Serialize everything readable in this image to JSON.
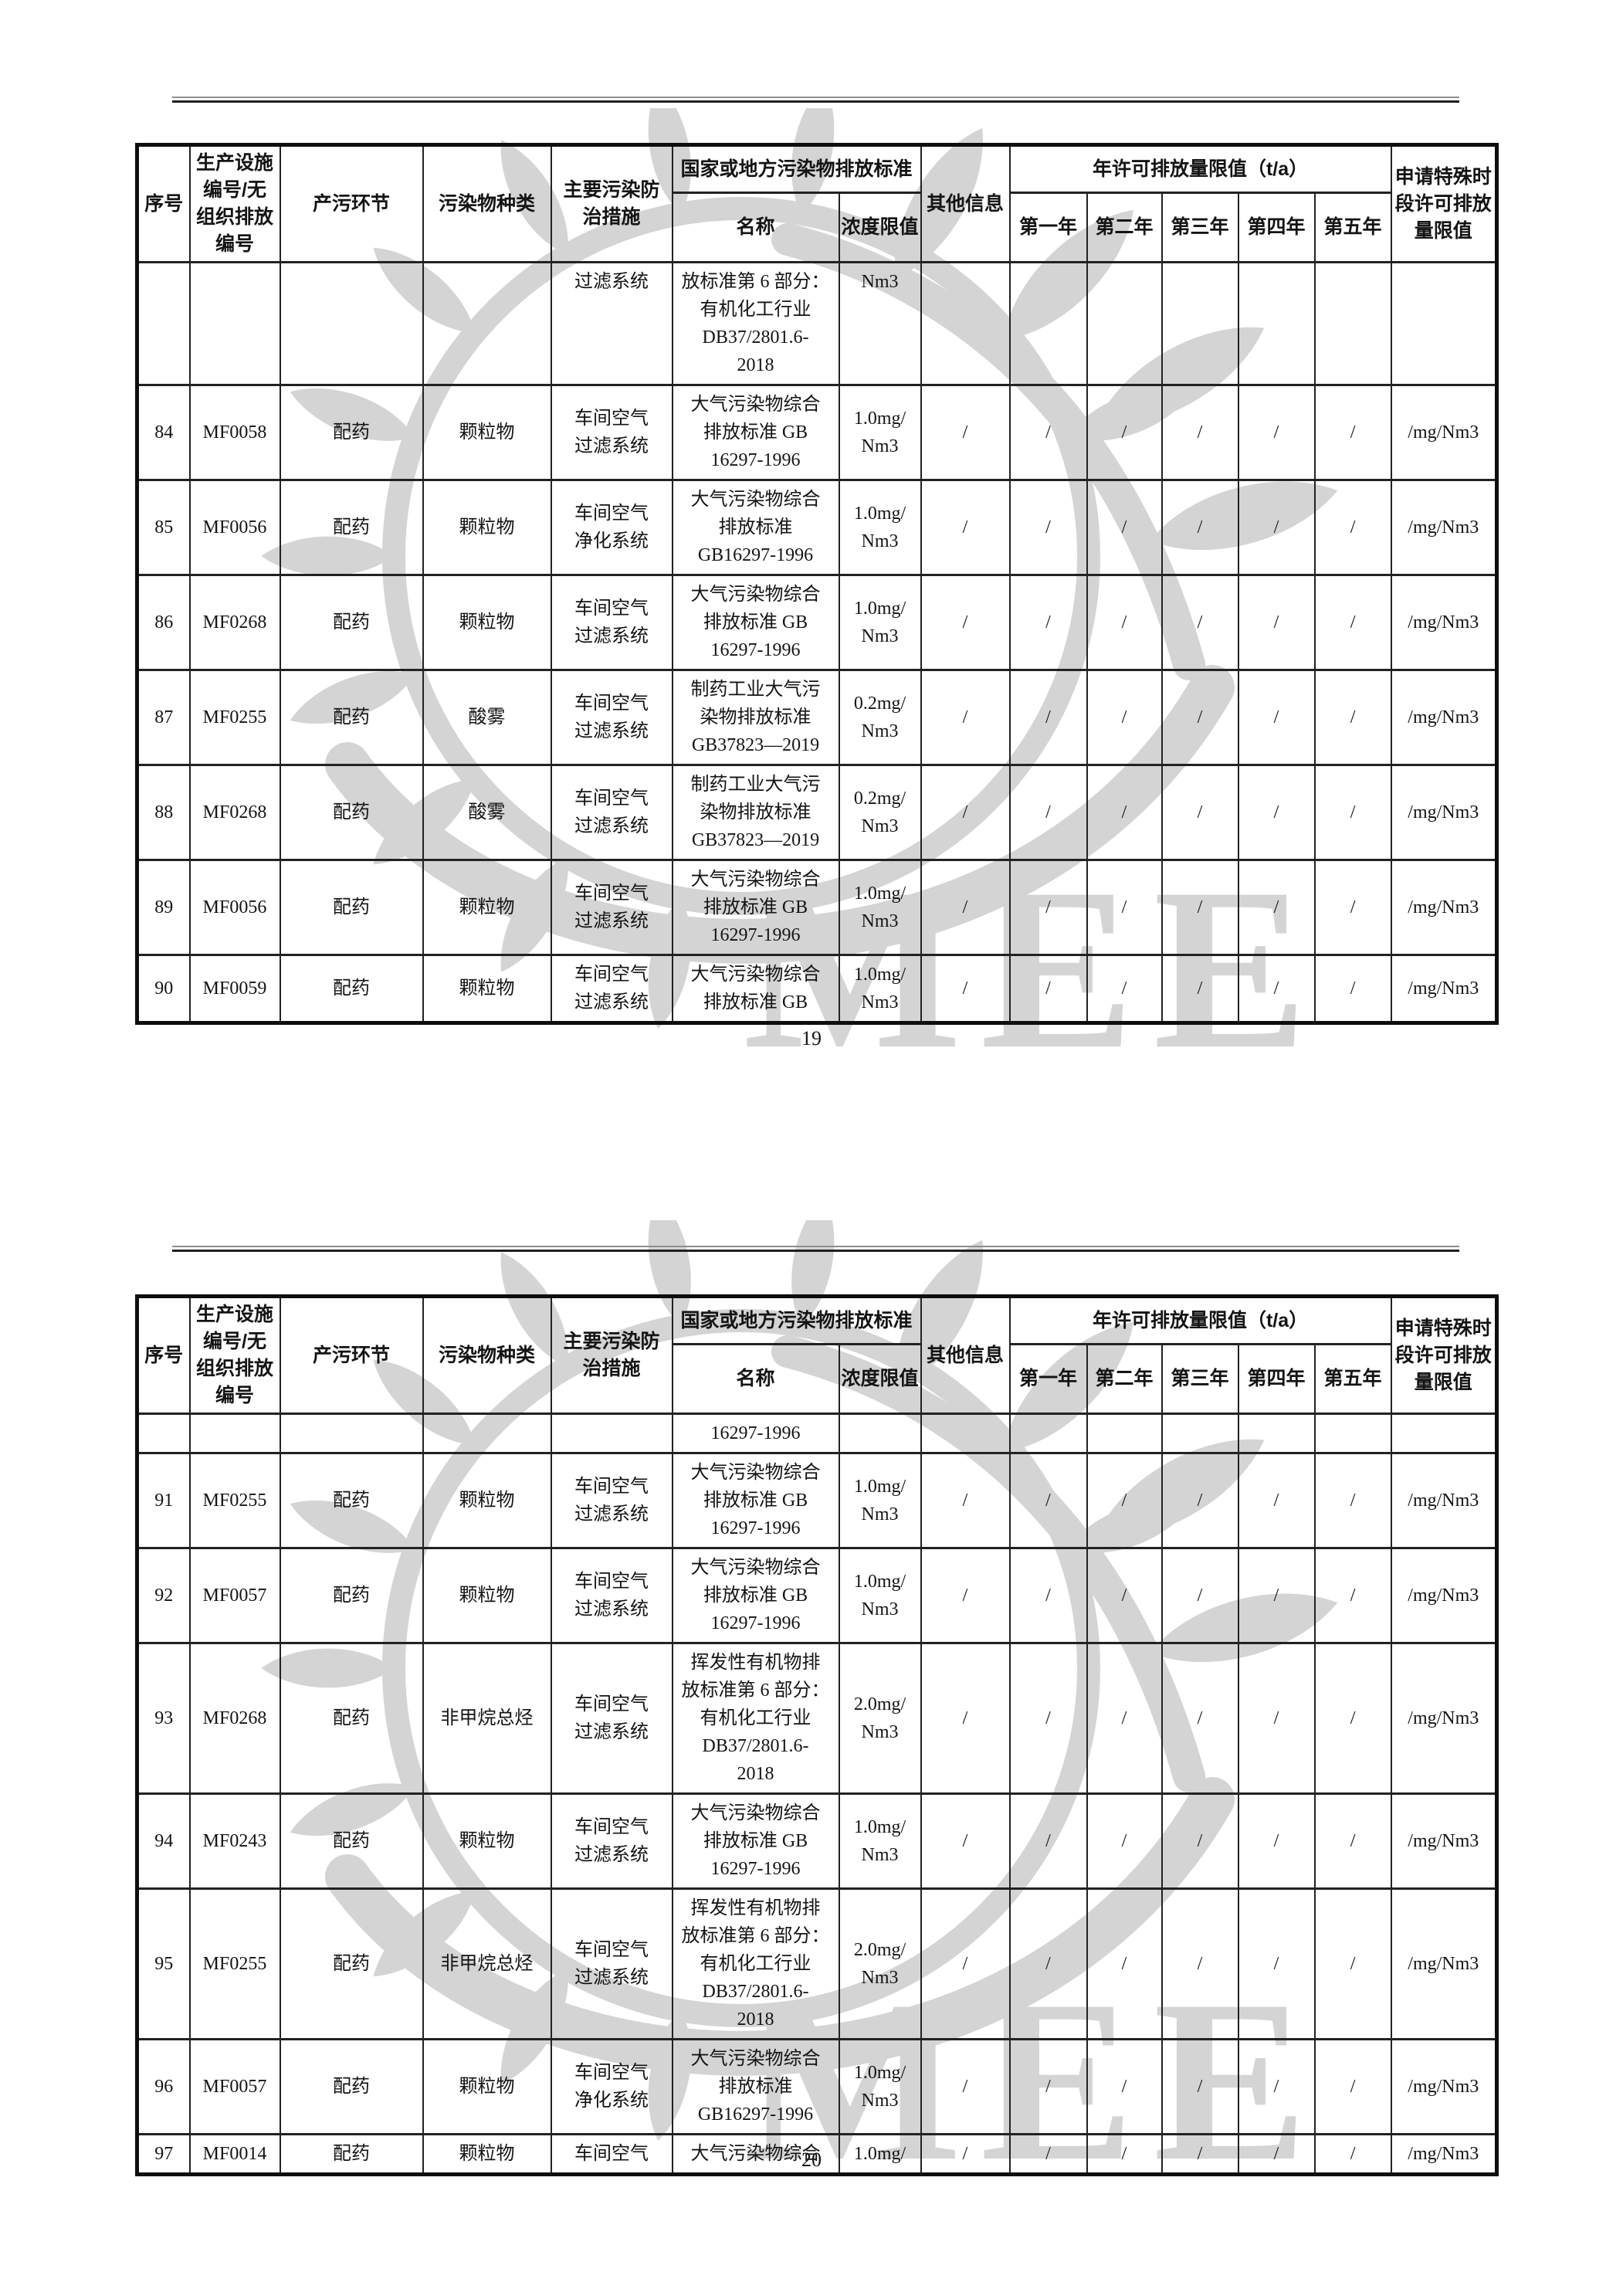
{
  "table_header": {
    "seq": "序号",
    "facility": "生产设施\n编号/无\n组织排放\n编号",
    "process": "产污环节",
    "pollutant": "污染物种类",
    "measure": "主要污染防\n治措施",
    "standard_group": "国家或地方污染物排放标准",
    "standard_name": "名称",
    "standard_limit": "浓度限值",
    "other_info": "其他信息",
    "annual_group": "年许可排放量限值（t/a）",
    "year1": "第一年",
    "year2": "第二年",
    "year3": "第三年",
    "year4": "第四年",
    "year5": "第五年",
    "special": "申请特殊时\n段许可排放\n量限值"
  },
  "column_ids": [
    "seq",
    "facility-id",
    "process",
    "pollutant",
    "measure",
    "standard-name",
    "concentration-limit",
    "other-info",
    "year1",
    "year2",
    "year3",
    "year4",
    "year5",
    "special-limit"
  ],
  "pages": [
    {
      "page_number": "19",
      "rows": [
        {
          "continued": true,
          "cells": [
            "",
            "",
            "",
            "",
            "过滤系统",
            "放标准第 6 部分：\n有机化工行业\nDB37/2801.6-\n2018",
            "Nm3",
            "",
            "",
            "",
            "",
            "",
            "",
            ""
          ]
        },
        {
          "cells": [
            "84",
            "MF0058",
            "配药",
            "颗粒物",
            "车间空气\n过滤系统",
            "大气污染物综合\n排放标准 GB\n16297-1996",
            "1.0mg/\nNm3",
            "/",
            "/",
            "/",
            "/",
            "/",
            "/",
            "/mg/Nm3"
          ]
        },
        {
          "cells": [
            "85",
            "MF0056",
            "配药",
            "颗粒物",
            "车间空气\n净化系统",
            "大气污染物综合\n排放标准\nGB16297-1996",
            "1.0mg/\nNm3",
            "/",
            "/",
            "/",
            "/",
            "/",
            "/",
            "/mg/Nm3"
          ]
        },
        {
          "cells": [
            "86",
            "MF0268",
            "配药",
            "颗粒物",
            "车间空气\n过滤系统",
            "大气污染物综合\n排放标准 GB\n16297-1996",
            "1.0mg/\nNm3",
            "/",
            "/",
            "/",
            "/",
            "/",
            "/",
            "/mg/Nm3"
          ]
        },
        {
          "cells": [
            "87",
            "MF0255",
            "配药",
            "酸雾",
            "车间空气\n过滤系统",
            "制药工业大气污\n染物排放标准\nGB37823—2019",
            "0.2mg/\nNm3",
            "/",
            "/",
            "/",
            "/",
            "/",
            "/",
            "/mg/Nm3"
          ]
        },
        {
          "cells": [
            "88",
            "MF0268",
            "配药",
            "酸雾",
            "车间空气\n过滤系统",
            "制药工业大气污\n染物排放标准\nGB37823—2019",
            "0.2mg/\nNm3",
            "/",
            "/",
            "/",
            "/",
            "/",
            "/",
            "/mg/Nm3"
          ]
        },
        {
          "cells": [
            "89",
            "MF0056",
            "配药",
            "颗粒物",
            "车间空气\n过滤系统",
            "大气污染物综合\n排放标准 GB\n16297-1996",
            "1.0mg/\nNm3",
            "/",
            "/",
            "/",
            "/",
            "/",
            "/",
            "/mg/Nm3"
          ]
        },
        {
          "cells": [
            "90",
            "MF0059",
            "配药",
            "颗粒物",
            "车间空气\n过滤系统",
            "大气污染物综合\n排放标准 GB",
            "1.0mg/\nNm3",
            "/",
            "/",
            "/",
            "/",
            "/",
            "/",
            "/mg/Nm3"
          ]
        }
      ]
    },
    {
      "page_number": "20",
      "rows": [
        {
          "continued": true,
          "cells": [
            "",
            "",
            "",
            "",
            "",
            "16297-1996",
            "",
            "",
            "",
            "",
            "",
            "",
            "",
            ""
          ]
        },
        {
          "cells": [
            "91",
            "MF0255",
            "配药",
            "颗粒物",
            "车间空气\n过滤系统",
            "大气污染物综合\n排放标准 GB\n16297-1996",
            "1.0mg/\nNm3",
            "/",
            "/",
            "/",
            "/",
            "/",
            "/",
            "/mg/Nm3"
          ]
        },
        {
          "cells": [
            "92",
            "MF0057",
            "配药",
            "颗粒物",
            "车间空气\n过滤系统",
            "大气污染物综合\n排放标准 GB\n16297-1996",
            "1.0mg/\nNm3",
            "/",
            "/",
            "/",
            "/",
            "/",
            "/",
            "/mg/Nm3"
          ]
        },
        {
          "cells": [
            "93",
            "MF0268",
            "配药",
            "非甲烷总烃",
            "车间空气\n过滤系统",
            "挥发性有机物排\n放标准第 6 部分：\n有机化工行业\nDB37/2801.6-\n2018",
            "2.0mg/\nNm3",
            "/",
            "/",
            "/",
            "/",
            "/",
            "/",
            "/mg/Nm3"
          ]
        },
        {
          "cells": [
            "94",
            "MF0243",
            "配药",
            "颗粒物",
            "车间空气\n过滤系统",
            "大气污染物综合\n排放标准 GB\n16297-1996",
            "1.0mg/\nNm3",
            "/",
            "/",
            "/",
            "/",
            "/",
            "/",
            "/mg/Nm3"
          ]
        },
        {
          "cells": [
            "95",
            "MF0255",
            "配药",
            "非甲烷总烃",
            "车间空气\n过滤系统",
            "挥发性有机物排\n放标准第 6 部分：\n有机化工行业\nDB37/2801.6-\n2018",
            "2.0mg/\nNm3",
            "/",
            "/",
            "/",
            "/",
            "/",
            "/",
            "/mg/Nm3"
          ]
        },
        {
          "cells": [
            "96",
            "MF0057",
            "配药",
            "颗粒物",
            "车间空气\n净化系统",
            "大气污染物综合\n排放标准\nGB16297-1996",
            "1.0mg/\nNm3",
            "/",
            "/",
            "/",
            "/",
            "/",
            "/",
            "/mg/Nm3"
          ]
        },
        {
          "cells": [
            "97",
            "MF0014",
            "配药",
            "颗粒物",
            "车间空气",
            "大气污染物综合",
            "1.0mg/",
            "/",
            "/",
            "/",
            "/",
            "/",
            "/",
            "/mg/Nm3"
          ]
        }
      ]
    }
  ],
  "watermark": {
    "letters": "MEE"
  },
  "colors": {
    "text": "#141414",
    "border": "#1f1f1f",
    "watermark": "#d4d4d4"
  }
}
